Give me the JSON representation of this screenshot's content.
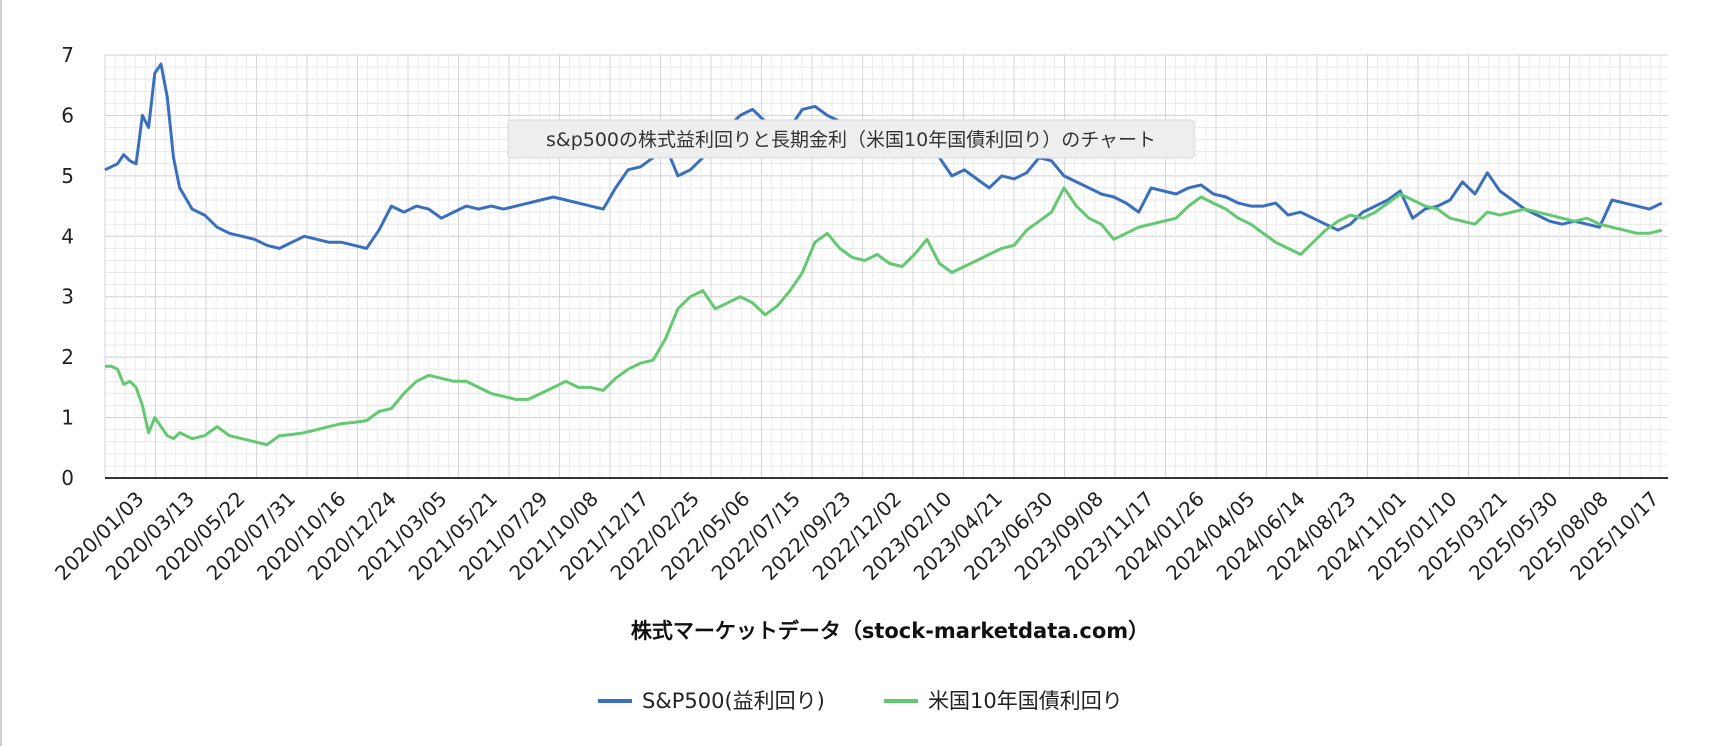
{
  "chart_data": {
    "type": "line",
    "title": "s&p500の株式益利回りと長期金利（米国10年国債利回り）のチャート",
    "xlabel": "株式マーケットデータ（stock-marketdata.com）",
    "ylabel": "",
    "ylim": [
      0,
      7
    ],
    "y_ticks": [
      "0",
      "1",
      "2",
      "3",
      "4",
      "5",
      "6",
      "7"
    ],
    "x_ticks": [
      "2020/01/03",
      "2020/03/13",
      "2020/05/22",
      "2020/07/31",
      "2020/10/16",
      "2020/12/24",
      "2021/03/05",
      "2021/05/21",
      "2021/07/29",
      "2021/10/08",
      "2021/12/17",
      "2022/02/25",
      "2022/05/06",
      "2022/07/15",
      "2022/09/23",
      "2022/12/02",
      "2023/02/10",
      "2023/04/21",
      "2023/06/30",
      "2023/09/08",
      "2023/11/17",
      "2024/01/26",
      "2024/04/05",
      "2024/06/14",
      "2024/08/23",
      "2024/11/01",
      "2025/01/10",
      "2025/03/21",
      "2025/05/30",
      "2025/08/08",
      "2025/10/17"
    ],
    "grid": true,
    "legend_position": "bottom",
    "series": [
      {
        "name": "S&P500(益利回り)",
        "color": "#3a6fbf",
        "points": [
          [
            0,
            5.1
          ],
          [
            1,
            5.15
          ],
          [
            2,
            5.2
          ],
          [
            3,
            5.35
          ],
          [
            4,
            5.25
          ],
          [
            5,
            5.2
          ],
          [
            6,
            6.0
          ],
          [
            7,
            5.8
          ],
          [
            8,
            6.7
          ],
          [
            9,
            6.85
          ],
          [
            10,
            6.3
          ],
          [
            11,
            5.3
          ],
          [
            12,
            4.8
          ],
          [
            14,
            4.45
          ],
          [
            16,
            4.35
          ],
          [
            18,
            4.15
          ],
          [
            20,
            4.05
          ],
          [
            22,
            4.0
          ],
          [
            24,
            3.95
          ],
          [
            26,
            3.85
          ],
          [
            28,
            3.8
          ],
          [
            30,
            3.9
          ],
          [
            32,
            4.0
          ],
          [
            34,
            3.95
          ],
          [
            36,
            3.9
          ],
          [
            38,
            3.9
          ],
          [
            40,
            3.85
          ],
          [
            42,
            3.8
          ],
          [
            44,
            4.1
          ],
          [
            46,
            4.5
          ],
          [
            48,
            4.4
          ],
          [
            50,
            4.5
          ],
          [
            52,
            4.45
          ],
          [
            54,
            4.3
          ],
          [
            56,
            4.4
          ],
          [
            58,
            4.5
          ],
          [
            60,
            4.45
          ],
          [
            62,
            4.5
          ],
          [
            64,
            4.45
          ],
          [
            66,
            4.5
          ],
          [
            68,
            4.55
          ],
          [
            70,
            4.6
          ],
          [
            72,
            4.65
          ],
          [
            74,
            4.6
          ],
          [
            76,
            4.55
          ],
          [
            78,
            4.5
          ],
          [
            80,
            4.45
          ],
          [
            82,
            4.8
          ],
          [
            84,
            5.1
          ],
          [
            86,
            5.15
          ],
          [
            88,
            5.3
          ],
          [
            90,
            5.5
          ],
          [
            92,
            5.0
          ],
          [
            94,
            5.1
          ],
          [
            96,
            5.3
          ],
          [
            98,
            5.6
          ],
          [
            100,
            5.8
          ],
          [
            102,
            6.0
          ],
          [
            104,
            6.1
          ],
          [
            106,
            5.9
          ],
          [
            108,
            5.6
          ],
          [
            110,
            5.8
          ],
          [
            112,
            6.1
          ],
          [
            114,
            6.15
          ],
          [
            116,
            6.0
          ],
          [
            118,
            5.9
          ],
          [
            120,
            5.7
          ],
          [
            122,
            5.8
          ],
          [
            124,
            5.6
          ],
          [
            126,
            5.5
          ],
          [
            128,
            5.5
          ],
          [
            130,
            5.4
          ],
          [
            132,
            5.4
          ],
          [
            134,
            5.3
          ],
          [
            136,
            5.0
          ],
          [
            138,
            5.1
          ],
          [
            140,
            4.95
          ],
          [
            142,
            4.8
          ],
          [
            144,
            5.0
          ],
          [
            146,
            4.95
          ],
          [
            148,
            5.05
          ],
          [
            150,
            5.3
          ],
          [
            152,
            5.25
          ],
          [
            154,
            5.0
          ],
          [
            156,
            4.9
          ],
          [
            158,
            4.8
          ],
          [
            160,
            4.7
          ],
          [
            162,
            4.65
          ],
          [
            164,
            4.55
          ],
          [
            166,
            4.4
          ],
          [
            168,
            4.8
          ],
          [
            170,
            4.75
          ],
          [
            172,
            4.7
          ],
          [
            174,
            4.8
          ],
          [
            176,
            4.85
          ],
          [
            178,
            4.7
          ],
          [
            180,
            4.65
          ],
          [
            182,
            4.55
          ],
          [
            184,
            4.5
          ],
          [
            186,
            4.5
          ],
          [
            188,
            4.55
          ],
          [
            190,
            4.35
          ],
          [
            192,
            4.4
          ],
          [
            194,
            4.3
          ],
          [
            196,
            4.2
          ],
          [
            198,
            4.1
          ],
          [
            200,
            4.2
          ],
          [
            202,
            4.4
          ],
          [
            204,
            4.5
          ],
          [
            206,
            4.6
          ],
          [
            208,
            4.75
          ],
          [
            210,
            4.3
          ],
          [
            212,
            4.45
          ],
          [
            214,
            4.5
          ],
          [
            216,
            4.6
          ],
          [
            218,
            4.9
          ],
          [
            220,
            4.7
          ],
          [
            222,
            5.05
          ],
          [
            224,
            4.75
          ],
          [
            226,
            4.6
          ],
          [
            228,
            4.45
          ],
          [
            230,
            4.35
          ],
          [
            232,
            4.25
          ],
          [
            234,
            4.2
          ],
          [
            236,
            4.25
          ],
          [
            238,
            4.2
          ],
          [
            240,
            4.15
          ],
          [
            242,
            4.6
          ],
          [
            244,
            4.55
          ],
          [
            246,
            4.5
          ],
          [
            248,
            4.45
          ],
          [
            250,
            4.55
          ]
        ]
      },
      {
        "name": "米国10年国債利回り",
        "color": "#63c970",
        "points": [
          [
            0,
            1.85
          ],
          [
            1,
            1.85
          ],
          [
            2,
            1.8
          ],
          [
            3,
            1.55
          ],
          [
            4,
            1.6
          ],
          [
            5,
            1.5
          ],
          [
            6,
            1.2
          ],
          [
            7,
            0.75
          ],
          [
            8,
            1.0
          ],
          [
            9,
            0.85
          ],
          [
            10,
            0.7
          ],
          [
            11,
            0.65
          ],
          [
            12,
            0.75
          ],
          [
            14,
            0.65
          ],
          [
            16,
            0.7
          ],
          [
            18,
            0.85
          ],
          [
            20,
            0.7
          ],
          [
            22,
            0.65
          ],
          [
            24,
            0.6
          ],
          [
            26,
            0.55
          ],
          [
            28,
            0.7
          ],
          [
            30,
            0.72
          ],
          [
            32,
            0.75
          ],
          [
            34,
            0.8
          ],
          [
            36,
            0.85
          ],
          [
            38,
            0.9
          ],
          [
            40,
            0.92
          ],
          [
            42,
            0.95
          ],
          [
            44,
            1.1
          ],
          [
            46,
            1.15
          ],
          [
            48,
            1.4
          ],
          [
            50,
            1.6
          ],
          [
            52,
            1.7
          ],
          [
            54,
            1.65
          ],
          [
            56,
            1.6
          ],
          [
            58,
            1.6
          ],
          [
            60,
            1.5
          ],
          [
            62,
            1.4
          ],
          [
            64,
            1.35
          ],
          [
            66,
            1.3
          ],
          [
            68,
            1.3
          ],
          [
            70,
            1.4
          ],
          [
            72,
            1.5
          ],
          [
            74,
            1.6
          ],
          [
            76,
            1.5
          ],
          [
            78,
            1.5
          ],
          [
            80,
            1.45
          ],
          [
            82,
            1.65
          ],
          [
            84,
            1.8
          ],
          [
            86,
            1.9
          ],
          [
            88,
            1.95
          ],
          [
            90,
            2.3
          ],
          [
            92,
            2.8
          ],
          [
            94,
            3.0
          ],
          [
            96,
            3.1
          ],
          [
            98,
            2.8
          ],
          [
            100,
            2.9
          ],
          [
            102,
            3.0
          ],
          [
            104,
            2.9
          ],
          [
            106,
            2.7
          ],
          [
            108,
            2.85
          ],
          [
            110,
            3.1
          ],
          [
            112,
            3.4
          ],
          [
            114,
            3.9
          ],
          [
            116,
            4.05
          ],
          [
            118,
            3.8
          ],
          [
            120,
            3.65
          ],
          [
            122,
            3.6
          ],
          [
            124,
            3.7
          ],
          [
            126,
            3.55
          ],
          [
            128,
            3.5
          ],
          [
            130,
            3.7
          ],
          [
            132,
            3.95
          ],
          [
            134,
            3.55
          ],
          [
            136,
            3.4
          ],
          [
            138,
            3.5
          ],
          [
            140,
            3.6
          ],
          [
            142,
            3.7
          ],
          [
            144,
            3.8
          ],
          [
            146,
            3.85
          ],
          [
            148,
            4.1
          ],
          [
            150,
            4.25
          ],
          [
            152,
            4.4
          ],
          [
            154,
            4.8
          ],
          [
            156,
            4.5
          ],
          [
            158,
            4.3
          ],
          [
            160,
            4.2
          ],
          [
            162,
            3.95
          ],
          [
            164,
            4.05
          ],
          [
            166,
            4.15
          ],
          [
            168,
            4.2
          ],
          [
            170,
            4.25
          ],
          [
            172,
            4.3
          ],
          [
            174,
            4.5
          ],
          [
            176,
            4.65
          ],
          [
            178,
            4.55
          ],
          [
            180,
            4.45
          ],
          [
            182,
            4.3
          ],
          [
            184,
            4.2
          ],
          [
            186,
            4.05
          ],
          [
            188,
            3.9
          ],
          [
            190,
            3.8
          ],
          [
            192,
            3.7
          ],
          [
            194,
            3.9
          ],
          [
            196,
            4.1
          ],
          [
            198,
            4.25
          ],
          [
            200,
            4.35
          ],
          [
            202,
            4.3
          ],
          [
            204,
            4.4
          ],
          [
            206,
            4.55
          ],
          [
            208,
            4.7
          ],
          [
            210,
            4.6
          ],
          [
            212,
            4.5
          ],
          [
            214,
            4.45
          ],
          [
            216,
            4.3
          ],
          [
            218,
            4.25
          ],
          [
            220,
            4.2
          ],
          [
            222,
            4.4
          ],
          [
            224,
            4.35
          ],
          [
            226,
            4.4
          ],
          [
            228,
            4.45
          ],
          [
            230,
            4.4
          ],
          [
            232,
            4.35
          ],
          [
            234,
            4.3
          ],
          [
            236,
            4.25
          ],
          [
            238,
            4.3
          ],
          [
            240,
            4.2
          ],
          [
            242,
            4.15
          ],
          [
            244,
            4.1
          ],
          [
            246,
            4.05
          ],
          [
            248,
            4.05
          ],
          [
            250,
            4.1
          ]
        ]
      }
    ]
  }
}
